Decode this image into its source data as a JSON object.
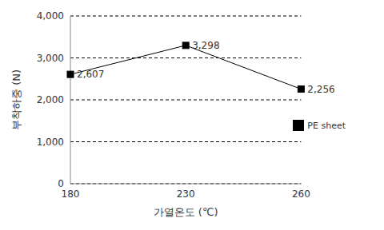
{
  "chart_data": {
    "type": "line",
    "x_label": "가열온도 (℃)",
    "y_label": "부착하중 (N)",
    "categories": [
      "180",
      "230",
      "260"
    ],
    "series": [
      {
        "name": "PE sheet",
        "color": "#000000",
        "marker": "square",
        "values": [
          2607,
          3298,
          2256
        ],
        "value_labels": [
          "2,607",
          "3,298",
          "2,256"
        ]
      }
    ],
    "ylim": [
      0,
      4000
    ],
    "yticks": [
      0,
      {
        "value": 1000,
        "label": "1,000"
      },
      {
        "value": 2000,
        "label": "2,000"
      },
      {
        "value": 3000,
        "label": "3,000"
      },
      {
        "value": 4000,
        "label": "4,000"
      }
    ],
    "grid": true,
    "legend": "right",
    "data_labels": true
  }
}
